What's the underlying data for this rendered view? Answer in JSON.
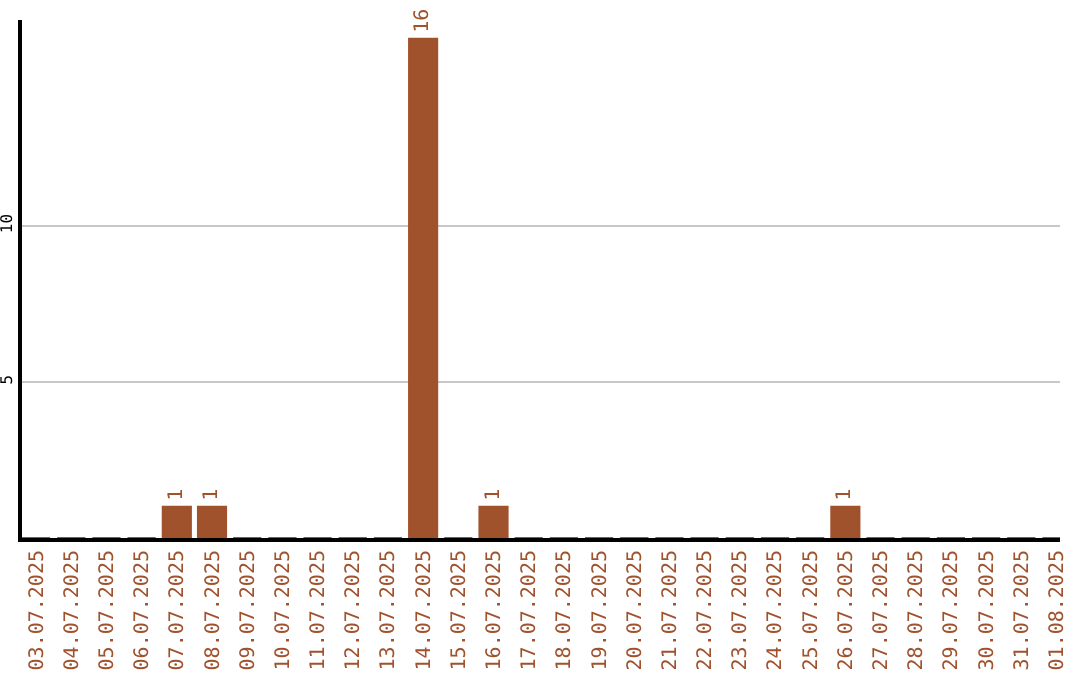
{
  "chart_data": {
    "type": "bar",
    "categories": [
      "03.07.2025",
      "04.07.2025",
      "05.07.2025",
      "06.07.2025",
      "07.07.2025",
      "08.07.2025",
      "09.07.2025",
      "10.07.2025",
      "11.07.2025",
      "12.07.2025",
      "13.07.2025",
      "14.07.2025",
      "15.07.2025",
      "16.07.2025",
      "17.07.2025",
      "18.07.2025",
      "19.07.2025",
      "20.07.2025",
      "21.07.2025",
      "22.07.2025",
      "23.07.2025",
      "24.07.2025",
      "25.07.2025",
      "26.07.2025",
      "27.07.2025",
      "28.07.2025",
      "29.07.2025",
      "30.07.2025",
      "31.07.2025",
      "01.08.2025"
    ],
    "values": [
      0,
      0,
      0,
      0,
      1,
      1,
      0,
      0,
      0,
      0,
      0,
      16,
      0,
      1,
      0,
      0,
      0,
      0,
      0,
      0,
      0,
      0,
      0,
      1,
      0,
      0,
      0,
      0,
      0,
      0
    ],
    "value_labels": [
      null,
      null,
      null,
      null,
      "1",
      "1",
      null,
      null,
      null,
      null,
      null,
      "16",
      null,
      "1",
      null,
      null,
      null,
      null,
      null,
      null,
      null,
      null,
      null,
      "1",
      null,
      null,
      null,
      null,
      null,
      null
    ],
    "color": "#a0522d",
    "ylim": [
      0,
      16.6
    ],
    "yticks": [
      5,
      10
    ],
    "grid": "y",
    "legend": false
  }
}
